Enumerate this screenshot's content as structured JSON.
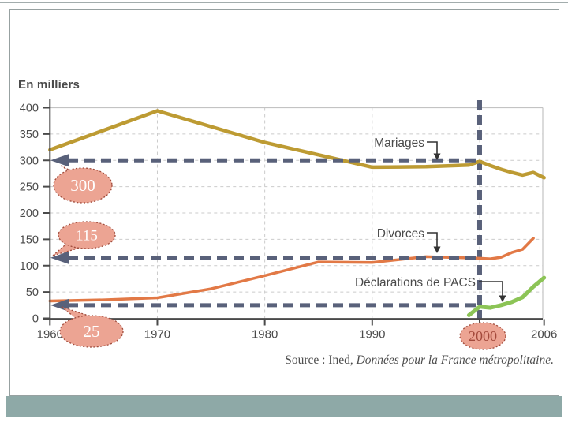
{
  "slide": {
    "source": {
      "prefix": "Source : Ined, ",
      "italic": "Données pour la France métropolitaine."
    }
  },
  "footer": {
    "bar_color": "#8ea9a7"
  },
  "chart_data": {
    "type": "line",
    "title": "En milliers",
    "grid": true,
    "x_axis": {
      "min": 1960,
      "max": 2006,
      "tick_values": [
        1960,
        1970,
        1980,
        1990,
        2000,
        2006
      ],
      "tick_labels": [
        "1960",
        "1970",
        "1980",
        "1990",
        "2000",
        "2006"
      ],
      "grid_years": [
        1970,
        1980,
        1990,
        2000
      ]
    },
    "y_axis": {
      "min": 0,
      "max": 400,
      "tick_values": [
        0,
        50,
        100,
        150,
        200,
        250,
        300,
        350,
        400
      ],
      "tick_labels": [
        "0",
        "50",
        "100",
        "150",
        "200",
        "250",
        "300",
        "350",
        "400"
      ]
    },
    "series": [
      {
        "name": "Mariages",
        "color": "#bd9b33",
        "points": [
          [
            1960,
            320
          ],
          [
            1970,
            394
          ],
          [
            1980,
            334
          ],
          [
            1990,
            287
          ],
          [
            1995,
            288
          ],
          [
            1999,
            291
          ],
          [
            2000,
            298
          ],
          [
            2001,
            290
          ],
          [
            2002,
            283
          ],
          [
            2003,
            277
          ],
          [
            2004,
            272
          ],
          [
            2005,
            277
          ],
          [
            2006,
            267
          ]
        ]
      },
      {
        "name": "Divorces",
        "color": "#e27946",
        "points": [
          [
            1960,
            33
          ],
          [
            1965,
            35
          ],
          [
            1970,
            39
          ],
          [
            1975,
            56
          ],
          [
            1980,
            81
          ],
          [
            1985,
            107
          ],
          [
            1990,
            106
          ],
          [
            1995,
            117
          ],
          [
            2000,
            114
          ],
          [
            2001,
            113
          ],
          [
            2002,
            116
          ],
          [
            2003,
            125
          ],
          [
            2004,
            131
          ],
          [
            2005,
            152
          ]
        ]
      },
      {
        "name": "Déclarations de PACS",
        "color": "#8cc456",
        "points": [
          [
            1999,
            6
          ],
          [
            2000,
            22
          ],
          [
            2001,
            20
          ],
          [
            2002,
            25
          ],
          [
            2003,
            31
          ],
          [
            2004,
            40
          ],
          [
            2005,
            60
          ],
          [
            2006,
            77
          ]
        ]
      }
    ],
    "annotations": {
      "arrow_color": "#59617a",
      "bubble_fill": "#eca493",
      "bubble_border": "#a04b3b",
      "bubble_text_color": "#ffffff",
      "highlight_text_color": "#a3493b",
      "h_arrows": [
        {
          "value": 300,
          "bubble": "300"
        },
        {
          "value": 115,
          "bubble": "115"
        },
        {
          "value": 25,
          "bubble": "25"
        }
      ],
      "v_arrow": {
        "year": 2000,
        "bubble": "2000"
      }
    }
  }
}
